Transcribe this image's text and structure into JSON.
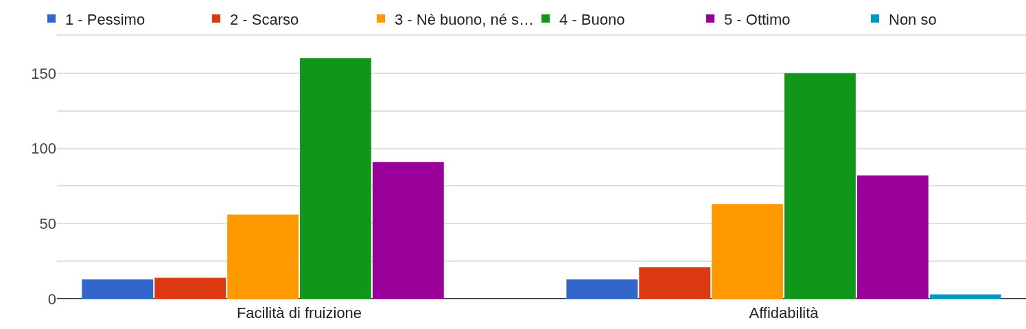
{
  "chart_data": {
    "type": "bar",
    "categories": [
      "Facilità di fruizione",
      "Affidabilità"
    ],
    "series": [
      {
        "name": "1 - Pessimo",
        "color": "#3366cc",
        "values": [
          13,
          13
        ]
      },
      {
        "name": "2 - Scarso",
        "color": "#dc3912",
        "values": [
          14,
          21
        ]
      },
      {
        "name": "3 - Nè buono, né s…",
        "color": "#ff9900",
        "values": [
          56,
          63
        ]
      },
      {
        "name": "4 - Buono",
        "color": "#109618",
        "values": [
          160,
          150
        ]
      },
      {
        "name": "5 - Ottimo",
        "color": "#990099",
        "values": [
          91,
          82
        ]
      },
      {
        "name": "Non so",
        "color": "#0099c6",
        "values": [
          0,
          3
        ]
      }
    ],
    "ylim": [
      0,
      175
    ],
    "yticks": [
      0,
      {
        "value": 25,
        "label": null
      },
      50,
      {
        "value": 75,
        "label": null
      },
      100,
      {
        "value": 125,
        "label": null
      },
      150,
      {
        "value": 175,
        "label": null
      }
    ],
    "grid": "y",
    "legend": "top"
  }
}
